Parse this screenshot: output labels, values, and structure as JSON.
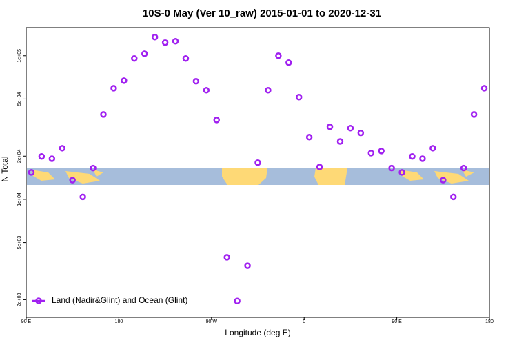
{
  "chart_data": {
    "type": "scatter",
    "title": "10S-0 May (Ver 10_raw)   2015-01-01 to 2020-12-31",
    "x_label": "Longitude (deg E)",
    "y_label": "N Total",
    "x": [
      95,
      105,
      115,
      125,
      135,
      145,
      155,
      165,
      175,
      185,
      195,
      205,
      215,
      225,
      235,
      245,
      255,
      265,
      275,
      285,
      295,
      305,
      315,
      325,
      335,
      345,
      355,
      365,
      375,
      385,
      395,
      405,
      415,
      425,
      435,
      445,
      455,
      465,
      475,
      485,
      495,
      505,
      515,
      525,
      535
    ],
    "series": [
      {
        "name": "Land (Nadir&Glint) and Ocean (Glint)",
        "color": "#a020f0",
        "values": [
          15400,
          19900,
          19200,
          22700,
          13600,
          10400,
          16500,
          39000,
          59400,
          67100,
          95700,
          103300,
          134900,
          123400,
          126200,
          95700,
          66400,
          57500,
          35700,
          3950,
          1960,
          3450,
          18000,
          57500,
          100000,
          89500,
          51500,
          27100,
          16800,
          32000,
          25300,
          31300,
          29000,
          21000,
          21700,
          16500,
          15400,
          19900,
          19200,
          22700,
          13600,
          10400,
          16500,
          39000,
          59400
        ]
      }
    ],
    "xlim": [
      90,
      540
    ],
    "xticks": [
      {
        "value": 90,
        "label": "90 E"
      },
      {
        "value": 180,
        "label": "180"
      },
      {
        "value": 270,
        "label": "90 W"
      },
      {
        "value": 360,
        "label": "0"
      },
      {
        "value": 450,
        "label": "90 E"
      },
      {
        "value": 540,
        "label": "180"
      }
    ],
    "ylim": [
      1507,
      157000
    ],
    "ylog": true,
    "yticks": [
      {
        "value": 2000,
        "label": "2e+03"
      },
      {
        "value": 5000,
        "label": "5e+03"
      },
      {
        "value": 10000,
        "label": "1e+04"
      },
      {
        "value": 20000,
        "label": "2e+04"
      },
      {
        "value": 50000,
        "label": "5e+04"
      },
      {
        "value": 100000,
        "label": "1e+05"
      }
    ],
    "legend": "bottom-left"
  }
}
